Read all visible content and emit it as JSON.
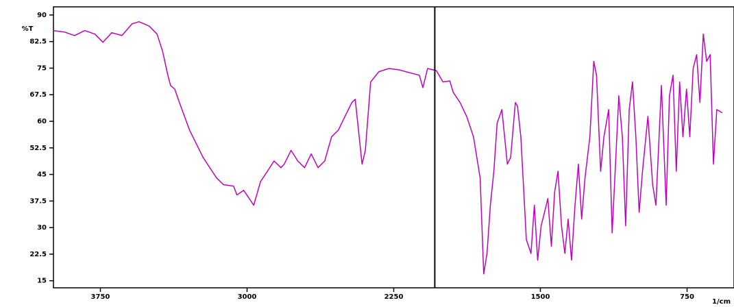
{
  "chart_data": {
    "type": "line",
    "y_label": "%T",
    "x_label": "1/cm",
    "color": "#c000c0",
    "xlim": [
      3990,
      510
    ],
    "xticks": [
      3750,
      3000,
      2250,
      1500,
      750
    ],
    "ylim": [
      13,
      92.3
    ],
    "yticks": [
      90,
      82.5,
      75,
      67.5,
      60,
      52.5,
      45,
      37.5,
      30,
      22.5,
      15
    ],
    "cursor_x": 2040,
    "x": [
      3992,
      3934,
      3882,
      3830,
      3778,
      3737,
      3692,
      3640,
      3588,
      3553,
      3501,
      3460,
      3432,
      3405,
      3391,
      3370,
      3346,
      3294,
      3225,
      3156,
      3121,
      3069,
      3052,
      3017,
      2966,
      2931,
      2896,
      2862,
      2827,
      2810,
      2775,
      2741,
      2706,
      2672,
      2637,
      2603,
      2568,
      2533,
      2499,
      2464,
      2447,
      2430,
      2412,
      2395,
      2368,
      2326,
      2274,
      2222,
      2188,
      2119,
      2101,
      2077,
      2032,
      1998,
      1963,
      1946,
      1911,
      1877,
      1842,
      1808,
      1790,
      1773,
      1756,
      1738,
      1721,
      1697,
      1669,
      1652,
      1628,
      1617,
      1600,
      1572,
      1548,
      1531,
      1514,
      1496,
      1479,
      1462,
      1444,
      1427,
      1410,
      1392,
      1375,
      1358,
      1341,
      1323,
      1306,
      1289,
      1272,
      1247,
      1227,
      1213,
      1192,
      1175,
      1151,
      1133,
      1116,
      1099,
      1081,
      1064,
      1046,
      1029,
      1012,
      995,
      978,
      950,
      926,
      909,
      881,
      857,
      840,
      822,
      805,
      788,
      771,
      753,
      736,
      719,
      701,
      684,
      667,
      650,
      632,
      615,
      598,
      570
    ],
    "values": [
      85.6,
      85.2,
      84.2,
      85.6,
      84.6,
      82.3,
      85.0,
      84.2,
      87.5,
      88.1,
      86.9,
      84.6,
      79.8,
      73.0,
      70.1,
      69.1,
      65.3,
      57.5,
      49.8,
      44.0,
      42.1,
      41.7,
      39.2,
      40.5,
      36.3,
      43.0,
      45.9,
      48.8,
      46.9,
      47.9,
      51.8,
      48.8,
      46.9,
      50.8,
      46.9,
      48.8,
      55.6,
      57.5,
      61.4,
      65.3,
      66.2,
      57.5,
      47.9,
      51.8,
      71.1,
      74.0,
      74.9,
      74.5,
      74.0,
      73.0,
      69.5,
      74.9,
      74.3,
      71.1,
      71.4,
      68.2,
      65.3,
      61.4,
      55.6,
      44.0,
      16.9,
      22.7,
      36.3,
      45.9,
      59.5,
      63.3,
      47.9,
      49.8,
      65.3,
      64.3,
      55.6,
      26.6,
      22.7,
      36.3,
      20.8,
      30.5,
      34.3,
      38.2,
      24.7,
      40.1,
      45.9,
      30.5,
      22.7,
      32.4,
      20.8,
      36.3,
      47.9,
      32.4,
      44.0,
      55.6,
      76.9,
      73.0,
      45.9,
      55.6,
      63.3,
      28.5,
      47.9,
      67.2,
      55.6,
      30.5,
      63.3,
      71.1,
      55.6,
      34.3,
      45.9,
      61.4,
      42.1,
      36.3,
      70.1,
      36.3,
      67.2,
      73.0,
      45.9,
      71.1,
      55.6,
      69.1,
      55.6,
      74.9,
      78.8,
      65.3,
      84.6,
      76.9,
      78.8,
      47.9,
      63.3,
      62.4
    ]
  }
}
